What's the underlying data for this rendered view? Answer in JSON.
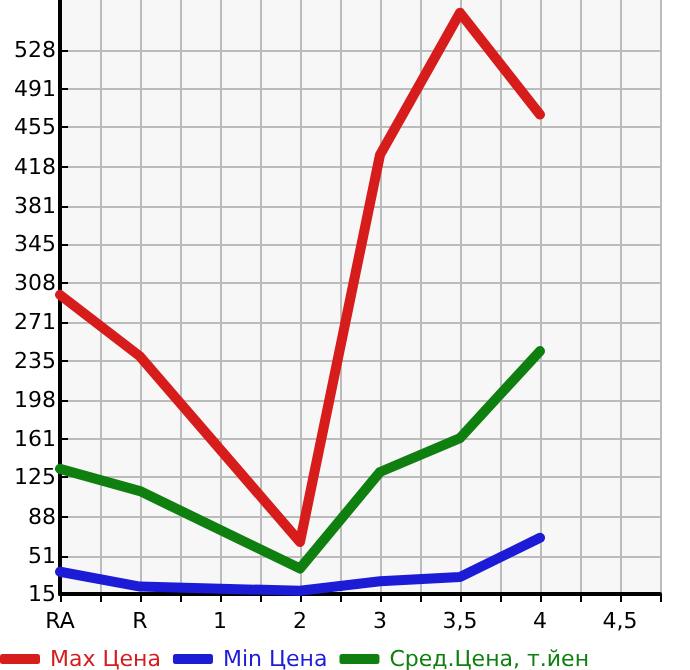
{
  "chart_data": {
    "type": "line",
    "categories": [
      "RA",
      null,
      "R",
      null,
      "1",
      null,
      "2",
      null,
      "3",
      null,
      "3,5",
      null,
      "4",
      null,
      "4,5",
      null
    ],
    "series": [
      {
        "name": "Max Цена",
        "color": "#d71c1c",
        "values": [
          297,
          null,
          239,
          null,
          null,
          null,
          64,
          null,
          429,
          null,
          563,
          null,
          467,
          null,
          null,
          null
        ]
      },
      {
        "name": "Min Цена",
        "color": "#1c1cd7",
        "values": [
          36,
          null,
          22,
          null,
          null,
          null,
          18,
          null,
          27,
          null,
          31,
          null,
          68,
          null,
          null,
          null
        ]
      },
      {
        "name": "Сред.Цена, т.йен",
        "color": "#0f800f",
        "values": [
          133,
          null,
          112,
          null,
          null,
          null,
          39,
          null,
          130,
          null,
          162,
          null,
          244,
          null,
          null,
          null
        ]
      }
    ],
    "ylim": [
      15,
      575
    ],
    "yticks": [
      15,
      51,
      88,
      125,
      161,
      198,
      235,
      271,
      308,
      345,
      381,
      418,
      455,
      491,
      528
    ],
    "grid": true,
    "legend": "bottom",
    "marker": "none",
    "line_style": "solid"
  }
}
